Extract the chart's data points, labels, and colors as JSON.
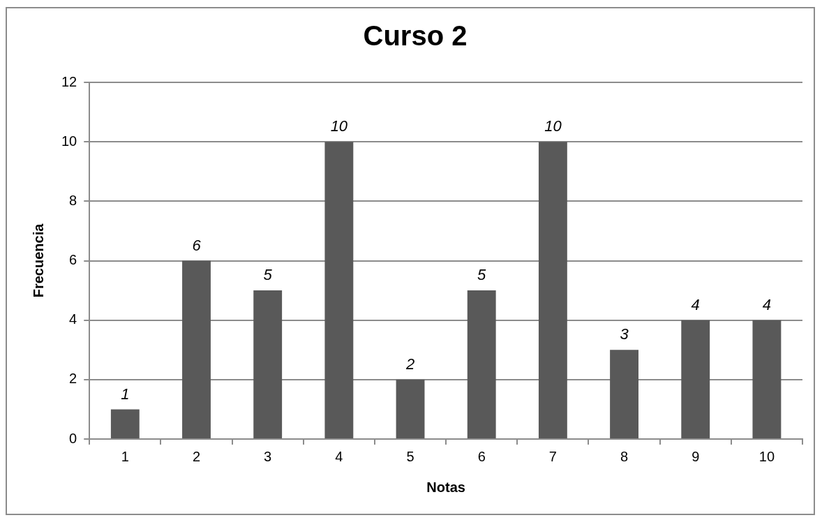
{
  "chart_data": {
    "type": "bar",
    "title": "Curso 2",
    "xlabel": "Notas",
    "ylabel": "Frecuencia",
    "categories": [
      "1",
      "2",
      "3",
      "4",
      "5",
      "6",
      "7",
      "8",
      "9",
      "10"
    ],
    "values": [
      1,
      6,
      5,
      10,
      2,
      5,
      10,
      3,
      4,
      4
    ],
    "color": "#595959",
    "ylim": [
      0,
      12
    ],
    "yticks": [
      0,
      2,
      4,
      6,
      8,
      10,
      12
    ],
    "grid": "y",
    "legend": false,
    "data_labels": true
  }
}
